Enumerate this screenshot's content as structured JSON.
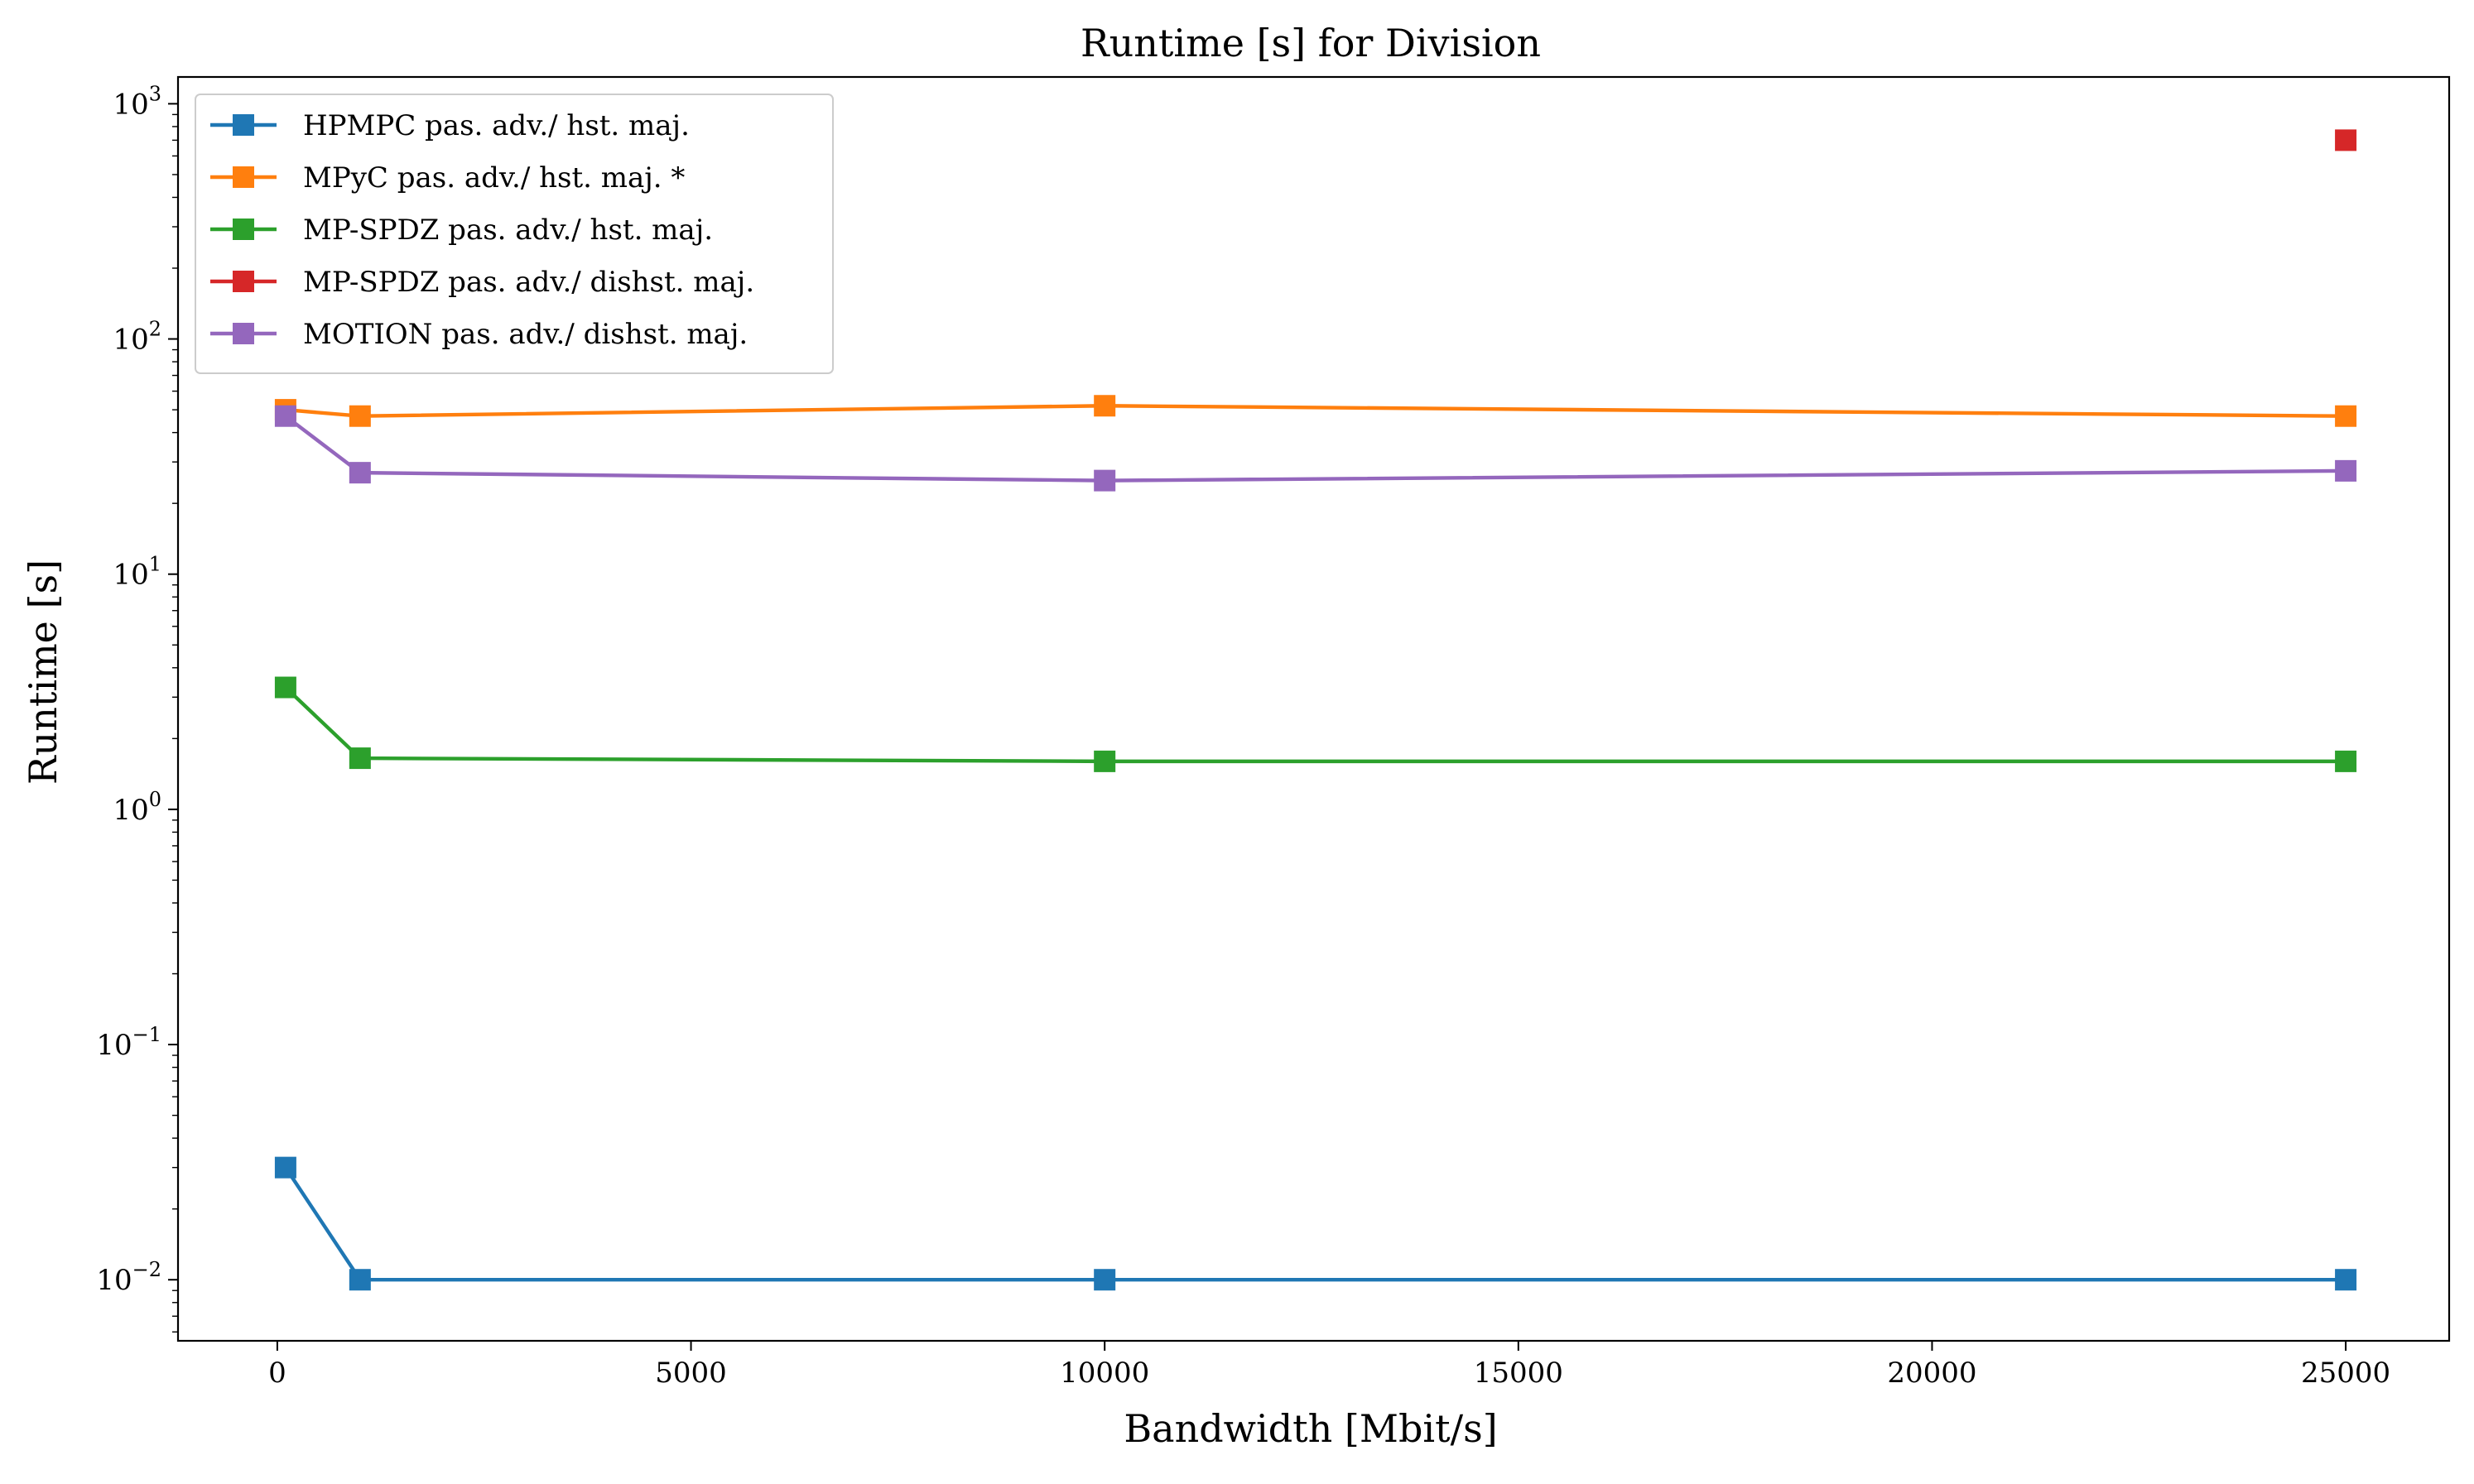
{
  "chart_data": {
    "type": "line",
    "title": "Runtime [s] for Division",
    "xlabel": "Bandwidth [Mbit/s]",
    "ylabel": "Runtime [s]",
    "xlim": [
      -1200,
      26250
    ],
    "ylim": [
      0.0055,
      1300
    ],
    "yscale": "log",
    "x_ticks": [
      0,
      5000,
      10000,
      15000,
      20000,
      25000
    ],
    "x_tick_labels": [
      "0",
      "5000",
      "10000",
      "15000",
      "20000",
      "25000"
    ],
    "y_ticks": [
      {
        "value": 0.01,
        "base": "10",
        "exp": "−2"
      },
      {
        "value": 0.1,
        "base": "10",
        "exp": "−1"
      },
      {
        "value": 1,
        "base": "10",
        "exp": "0"
      },
      {
        "value": 10,
        "base": "10",
        "exp": "1"
      },
      {
        "value": 100,
        "base": "10",
        "exp": "2"
      },
      {
        "value": 1000,
        "base": "10",
        "exp": "3"
      }
    ],
    "grid": false,
    "legend_position": "top-left",
    "series": [
      {
        "name": "HPMPC pas. adv./ hst. maj.",
        "color": "#1f77b4",
        "marker": "square",
        "x": [
          100,
          1000,
          10000,
          25000
        ],
        "y": [
          0.03,
          0.01,
          0.01,
          0.01
        ]
      },
      {
        "name": "MPyC pas. adv./ hst. maj. *",
        "color": "#ff7f0e",
        "marker": "square",
        "x": [
          100,
          1000,
          10000,
          25000
        ],
        "y": [
          50,
          47,
          52,
          47
        ]
      },
      {
        "name": "MP-SPDZ pas. adv./ hst. maj.",
        "color": "#2ca02c",
        "marker": "square",
        "x": [
          100,
          1000,
          10000,
          25000
        ],
        "y": [
          3.3,
          1.65,
          1.6,
          1.6
        ]
      },
      {
        "name": "MP-SPDZ pas. adv./ dishst. maj.",
        "color": "#d62728",
        "marker": "square",
        "x": [
          25000
        ],
        "y": [
          700
        ]
      },
      {
        "name": "MOTION pas. adv./ dishst. maj.",
        "color": "#9467bd",
        "marker": "square",
        "x": [
          100,
          1000,
          10000,
          25000
        ],
        "y": [
          47,
          27,
          25,
          27.5
        ]
      }
    ]
  }
}
